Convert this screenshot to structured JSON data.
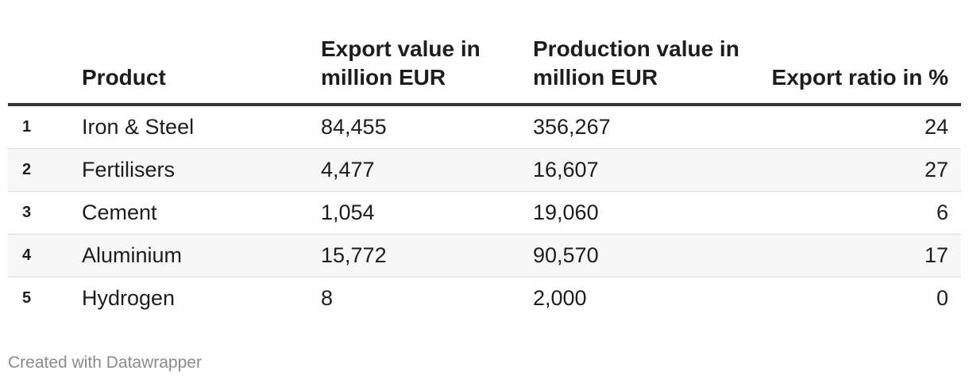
{
  "chart_data": {
    "type": "table",
    "columns": {
      "rank": "",
      "product": "Product",
      "export_value": "Export value in million EUR",
      "production_value": "Production value in million EUR",
      "export_ratio": "Export ratio in %"
    },
    "rows": [
      {
        "rank": "1",
        "product": "Iron & Steel",
        "export_value": "84,455",
        "production_value": "356,267",
        "export_ratio": "24"
      },
      {
        "rank": "2",
        "product": "Fertilisers",
        "export_value": "4,477",
        "production_value": "16,607",
        "export_ratio": "27"
      },
      {
        "rank": "3",
        "product": "Cement",
        "export_value": "1,054",
        "production_value": "19,060",
        "export_ratio": "6"
      },
      {
        "rank": "4",
        "product": "Aluminium",
        "export_value": "15,772",
        "production_value": "90,570",
        "export_ratio": "17"
      },
      {
        "rank": "5",
        "product": "Hydrogen",
        "export_value": "8",
        "production_value": "2,000",
        "export_ratio": "0"
      }
    ]
  },
  "footer": {
    "credit": "Created with Datawrapper"
  },
  "colors": {
    "text": "#1d1d1d",
    "header_rule": "#333333",
    "row_divider": "#dcdcdc",
    "shaded_row": "#f7f7f7",
    "footer_text": "#8b8b8b"
  }
}
